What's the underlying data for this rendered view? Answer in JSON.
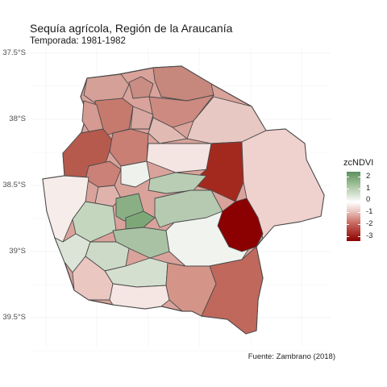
{
  "title": "Sequía agrícola, Región de la Araucanía",
  "subtitle": "Temporada: 1981-1982",
  "caption": "Fuente: Zambrano (2018)",
  "y_ticks": [
    "37.5°S",
    "38°S",
    "38.5°S",
    "39°S",
    "39.5°S"
  ],
  "legend": {
    "title": "zcNDVI",
    "ticks": [
      "2",
      "1",
      "0",
      "-1",
      "-2",
      "-3"
    ],
    "colors": {
      "high": "#5d8f5d",
      "mid": "#ffffff",
      "low": "#8b0000"
    }
  }
}
